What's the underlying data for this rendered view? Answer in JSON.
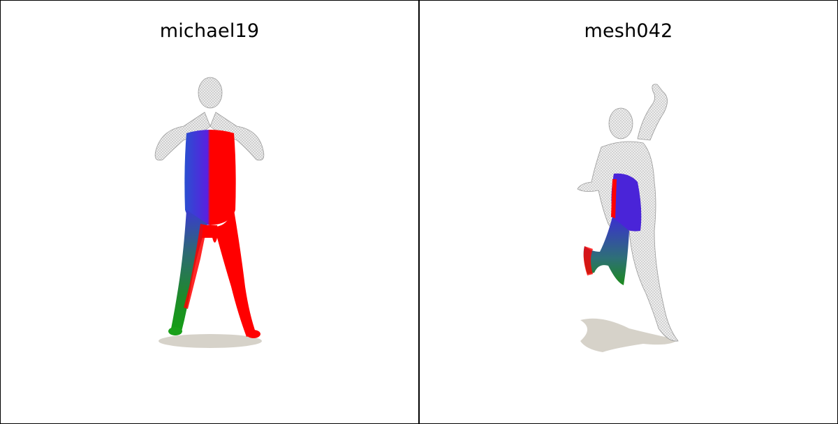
{
  "panels": [
    {
      "title": "michael19"
    },
    {
      "title": "mesh042"
    }
  ],
  "colors": {
    "red": "#ff0000",
    "blue": "#3a1fd6",
    "green": "#1c8a1c",
    "teal": "#2e6f78",
    "mesh_gray": "#e0e0e0",
    "shadow": "#d6d2c9"
  }
}
